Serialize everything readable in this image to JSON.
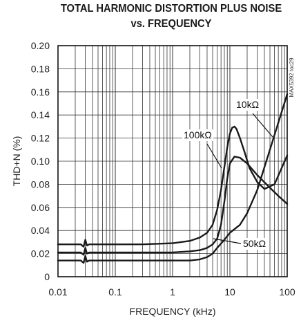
{
  "chart_data": {
    "type": "line",
    "title": "TOTAL HARMONIC DISTORTION PLUS NOISE",
    "subtitle": "vs. FREQUENCY",
    "xlabel": "FREQUENCY (kHz)",
    "ylabel": "THD+N (%)",
    "xscale": "log",
    "xlim": [
      0.01,
      100
    ],
    "ylim": [
      0,
      0.2
    ],
    "grid": true,
    "x_ticks": [
      "0.01",
      "0.1",
      "1",
      "10",
      "100"
    ],
    "y_ticks": [
      "0",
      "0.02",
      "0.04",
      "0.06",
      "0.08",
      "0.10",
      "0.12",
      "0.14",
      "0.16",
      "0.18",
      "0.20"
    ],
    "side_label": "MAX5392 toc29",
    "series": [
      {
        "name": "100kΩ",
        "x": [
          0.01,
          0.025,
          0.028,
          0.03,
          0.032,
          0.035,
          0.05,
          0.1,
          0.3,
          1,
          2,
          3,
          4,
          5,
          6,
          7,
          8,
          9,
          10,
          11,
          12,
          13,
          15,
          18,
          22,
          30,
          40,
          60,
          100
        ],
        "y": [
          0.028,
          0.028,
          0.026,
          0.032,
          0.027,
          0.028,
          0.028,
          0.028,
          0.028,
          0.029,
          0.031,
          0.034,
          0.038,
          0.045,
          0.058,
          0.075,
          0.095,
          0.112,
          0.124,
          0.129,
          0.13,
          0.128,
          0.12,
          0.108,
          0.094,
          0.082,
          0.076,
          0.08,
          0.105
        ]
      },
      {
        "name": "10kΩ",
        "x": [
          0.01,
          0.025,
          0.028,
          0.03,
          0.032,
          0.035,
          0.05,
          0.1,
          0.3,
          1,
          2,
          3,
          4,
          5,
          6,
          7,
          8,
          9,
          10,
          12,
          15,
          20,
          30,
          50,
          70,
          100
        ],
        "y": [
          0.021,
          0.021,
          0.019,
          0.025,
          0.02,
          0.021,
          0.021,
          0.021,
          0.021,
          0.021,
          0.022,
          0.023,
          0.025,
          0.028,
          0.033,
          0.045,
          0.065,
          0.085,
          0.098,
          0.104,
          0.103,
          0.098,
          0.088,
          0.077,
          0.07,
          0.063
        ]
      },
      {
        "name": "50kΩ",
        "x": [
          0.01,
          0.025,
          0.028,
          0.03,
          0.032,
          0.035,
          0.05,
          0.1,
          0.3,
          1,
          2,
          3,
          4,
          5,
          6,
          8,
          10,
          15,
          20,
          30,
          50,
          100
        ],
        "y": [
          0.014,
          0.014,
          0.012,
          0.018,
          0.013,
          0.014,
          0.014,
          0.014,
          0.014,
          0.014,
          0.014,
          0.015,
          0.017,
          0.02,
          0.025,
          0.032,
          0.038,
          0.045,
          0.055,
          0.075,
          0.11,
          0.158
        ]
      }
    ],
    "annotations": [
      "10kΩ",
      "100kΩ",
      "50kΩ"
    ]
  }
}
